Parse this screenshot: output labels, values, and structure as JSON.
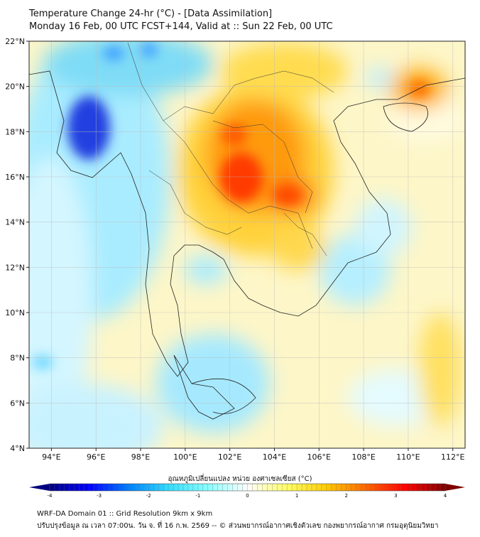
{
  "header": {
    "title": "Temperature Change 24-hr (°C) - [Data Assimilation]",
    "subtitle": "Monday 16 Feb, 00 UTC FCST+144, Valid at :: Sun 22 Feb, 00 UTC"
  },
  "map": {
    "lon_ticks": [
      "94°E",
      "96°E",
      "98°E",
      "100°E",
      "102°E",
      "104°E",
      "106°E",
      "108°E",
      "110°E",
      "112°E"
    ],
    "lat_ticks": [
      "22°N",
      "20°N",
      "18°N",
      "16°N",
      "14°N",
      "12°N",
      "10°N",
      "8°N",
      "6°N",
      "4°N"
    ],
    "extent": {
      "lon": [
        93,
        112.55
      ],
      "lat": [
        4,
        22
      ]
    }
  },
  "colorbar": {
    "label": "อุณหภูมิเปลี่ยนแปลง หน่วย องศาเซลเซียส (°C)",
    "ticks": [
      "-4",
      "-3",
      "-2",
      "-1",
      "0",
      "1",
      "2",
      "3",
      "4"
    ],
    "range": [
      -4,
      4
    ],
    "colors": [
      "#00007f",
      "#0000ff",
      "#0080ff",
      "#33ddff",
      "#88ffff",
      "#ffffff",
      "#ffff66",
      "#ffcc00",
      "#ff6600",
      "#ff0000",
      "#7f0000"
    ]
  },
  "footer": {
    "line1": "WRF-DA Domain 01 :: Grid Resolution 9km x 9km",
    "line2": "ปรับปรุงข้อมูล ณ เวลา 07:00น. วัน จ. ที่ 16 ก.พ. 2569 -- © ส่วนพยากรณ์อากาศเชิงตัวเลข กองพยากรณ์อากาศ กรมอุตุนิยมวิทยา"
  }
}
